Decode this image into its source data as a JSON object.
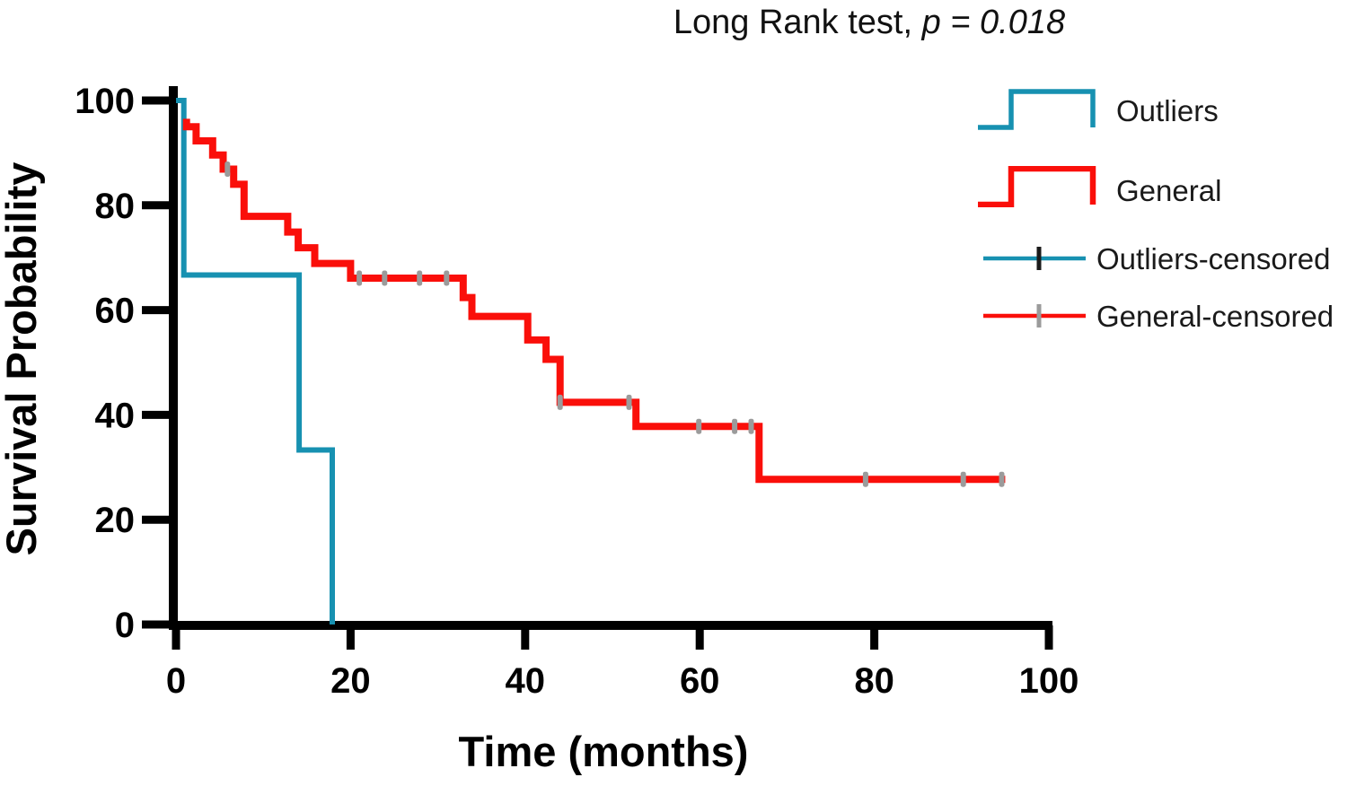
{
  "title": {
    "prefix": "Long Rank test, ",
    "p": "p = 0.018"
  },
  "colors": {
    "outliers": "#1791b1",
    "general": "#fa0f0a",
    "outliers_censor_tick": "#1a1a1a",
    "general_censor_tick": "#9b9b9b",
    "axis": "#000000"
  },
  "axes": {
    "x": {
      "label": "Time (months)"
    },
    "y": {
      "label": "Survival Probability"
    }
  },
  "legend": [
    {
      "label": "Outliers"
    },
    {
      "label": "General"
    },
    {
      "label": "Outliers-censored"
    },
    {
      "label": "General-censored"
    }
  ],
  "chart_data": {
    "type": "line",
    "subtype": "kaplan_meier_step",
    "title": "Long Rank test, p = 0.018",
    "p_value": 0.018,
    "xlabel": "Time (months)",
    "ylabel": "Survival Probability",
    "xlim": [
      0,
      100
    ],
    "ylim": [
      0,
      100
    ],
    "x_ticks": [
      0,
      20,
      40,
      60,
      80,
      100
    ],
    "y_ticks": [
      0,
      20,
      40,
      60,
      80,
      100
    ],
    "grid": false,
    "legend_position": "right",
    "series": [
      {
        "name": "Outliers",
        "color": "#1791b1",
        "width": 6,
        "points": [
          [
            0,
            100
          ],
          [
            0.9,
            100
          ],
          [
            0.9,
            66.7
          ],
          [
            14.1,
            66.7
          ],
          [
            14.1,
            33.3
          ],
          [
            17.9,
            33.3
          ],
          [
            17.9,
            0
          ]
        ],
        "censored": []
      },
      {
        "name": "General",
        "color": "#fa0f0a",
        "width": 8,
        "points": [
          [
            1.2,
            96.5
          ],
          [
            1.2,
            95.0
          ],
          [
            2.3,
            95.0
          ],
          [
            2.3,
            92.3
          ],
          [
            4.2,
            92.3
          ],
          [
            4.2,
            89.6
          ],
          [
            5.4,
            89.6
          ],
          [
            5.4,
            86.9
          ],
          [
            6.6,
            86.9
          ],
          [
            6.6,
            84.0
          ],
          [
            7.8,
            84.0
          ],
          [
            7.8,
            77.9
          ],
          [
            12.8,
            77.9
          ],
          [
            12.8,
            74.9
          ],
          [
            14.0,
            74.9
          ],
          [
            14.0,
            71.9
          ],
          [
            15.9,
            71.9
          ],
          [
            15.9,
            68.9
          ],
          [
            20.0,
            68.9
          ],
          [
            20.0,
            66.1
          ],
          [
            32.9,
            66.1
          ],
          [
            32.9,
            62.4
          ],
          [
            33.9,
            62.4
          ],
          [
            33.9,
            58.8
          ],
          [
            40.3,
            58.8
          ],
          [
            40.3,
            54.3
          ],
          [
            42.4,
            54.3
          ],
          [
            42.4,
            50.6
          ],
          [
            44.0,
            50.6
          ],
          [
            44.0,
            42.4
          ],
          [
            52.7,
            42.4
          ],
          [
            52.7,
            37.8
          ],
          [
            66.8,
            37.8
          ],
          [
            66.8,
            27.7
          ],
          [
            95.0,
            27.7
          ]
        ],
        "censored": [
          [
            5.9,
            86.9
          ],
          [
            21.0,
            66.1
          ],
          [
            23.9,
            66.1
          ],
          [
            27.9,
            66.1
          ],
          [
            31.0,
            66.1
          ],
          [
            44.0,
            42.4
          ],
          [
            51.9,
            42.4
          ],
          [
            59.9,
            37.8
          ],
          [
            64.0,
            37.8
          ],
          [
            65.9,
            37.8
          ],
          [
            79.0,
            27.7
          ],
          [
            90.2,
            27.7
          ],
          [
            94.6,
            27.7
          ]
        ]
      }
    ]
  }
}
